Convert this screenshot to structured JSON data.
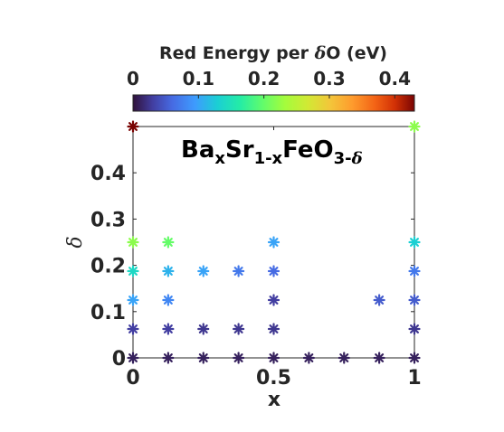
{
  "chart_data": {
    "type": "scatter",
    "title_parts": [
      "Ba",
      "x",
      "Sr",
      "1-x",
      "FeO",
      "3-",
      "δ"
    ],
    "xlabel": "x",
    "ylabel": "δ",
    "xlim": [
      0,
      1
    ],
    "ylim": [
      0,
      0.5
    ],
    "x_ticks": [
      0,
      0.5,
      1
    ],
    "x_tick_labels": [
      "0",
      "0.5",
      "1"
    ],
    "y_ticks": [
      0,
      0.1,
      0.2,
      0.3,
      0.4
    ],
    "y_tick_labels": [
      "0",
      "0.1",
      "0.2",
      "0.3",
      "0.4"
    ],
    "marker": "asterisk",
    "grid": false,
    "colorbar": {
      "label_parts": [
        "Red Energy per ",
        "δ",
        "O (eV)"
      ],
      "colormap": "turbo",
      "min": 0,
      "max": 0.43,
      "ticks": [
        0,
        0.1,
        0.2,
        0.3,
        0.4
      ],
      "tick_labels": [
        "0",
        "0.1",
        "0.2",
        "0.3",
        "0.4"
      ],
      "position": "top"
    },
    "points": [
      {
        "x": 0,
        "y": 0,
        "c": 0.01
      },
      {
        "x": 0.125,
        "y": 0,
        "c": 0.01
      },
      {
        "x": 0.25,
        "y": 0,
        "c": 0.01
      },
      {
        "x": 0.375,
        "y": 0,
        "c": 0.01
      },
      {
        "x": 0.5,
        "y": 0,
        "c": 0.01
      },
      {
        "x": 0.625,
        "y": 0,
        "c": 0.01
      },
      {
        "x": 0.75,
        "y": 0,
        "c": 0.01
      },
      {
        "x": 0.875,
        "y": 0,
        "c": 0.01
      },
      {
        "x": 1,
        "y": 0,
        "c": 0.01
      },
      {
        "x": 0,
        "y": 0.0625,
        "c": 0.03
      },
      {
        "x": 0.125,
        "y": 0.0625,
        "c": 0.03
      },
      {
        "x": 0.25,
        "y": 0.0625,
        "c": 0.025
      },
      {
        "x": 0.375,
        "y": 0.0625,
        "c": 0.025
      },
      {
        "x": 0.5,
        "y": 0.0625,
        "c": 0.025
      },
      {
        "x": 1,
        "y": 0.0625,
        "c": 0.025
      },
      {
        "x": 0,
        "y": 0.125,
        "c": 0.1
      },
      {
        "x": 0.125,
        "y": 0.125,
        "c": 0.08
      },
      {
        "x": 0.5,
        "y": 0.125,
        "c": 0.03
      },
      {
        "x": 0.875,
        "y": 0.125,
        "c": 0.05
      },
      {
        "x": 1,
        "y": 0.125,
        "c": 0.05
      },
      {
        "x": 0,
        "y": 0.1875,
        "c": 0.14
      },
      {
        "x": 0.125,
        "y": 0.1875,
        "c": 0.11
      },
      {
        "x": 0.25,
        "y": 0.1875,
        "c": 0.1
      },
      {
        "x": 0.375,
        "y": 0.1875,
        "c": 0.07
      },
      {
        "x": 0.5,
        "y": 0.1875,
        "c": 0.06
      },
      {
        "x": 1,
        "y": 0.1875,
        "c": 0.07
      },
      {
        "x": 0,
        "y": 0.25,
        "c": 0.22
      },
      {
        "x": 0.125,
        "y": 0.25,
        "c": 0.2
      },
      {
        "x": 0.5,
        "y": 0.25,
        "c": 0.1
      },
      {
        "x": 1,
        "y": 0.25,
        "c": 0.13
      },
      {
        "x": 0,
        "y": 0.5,
        "c": 0.43
      },
      {
        "x": 1,
        "y": 0.5,
        "c": 0.22
      }
    ]
  }
}
